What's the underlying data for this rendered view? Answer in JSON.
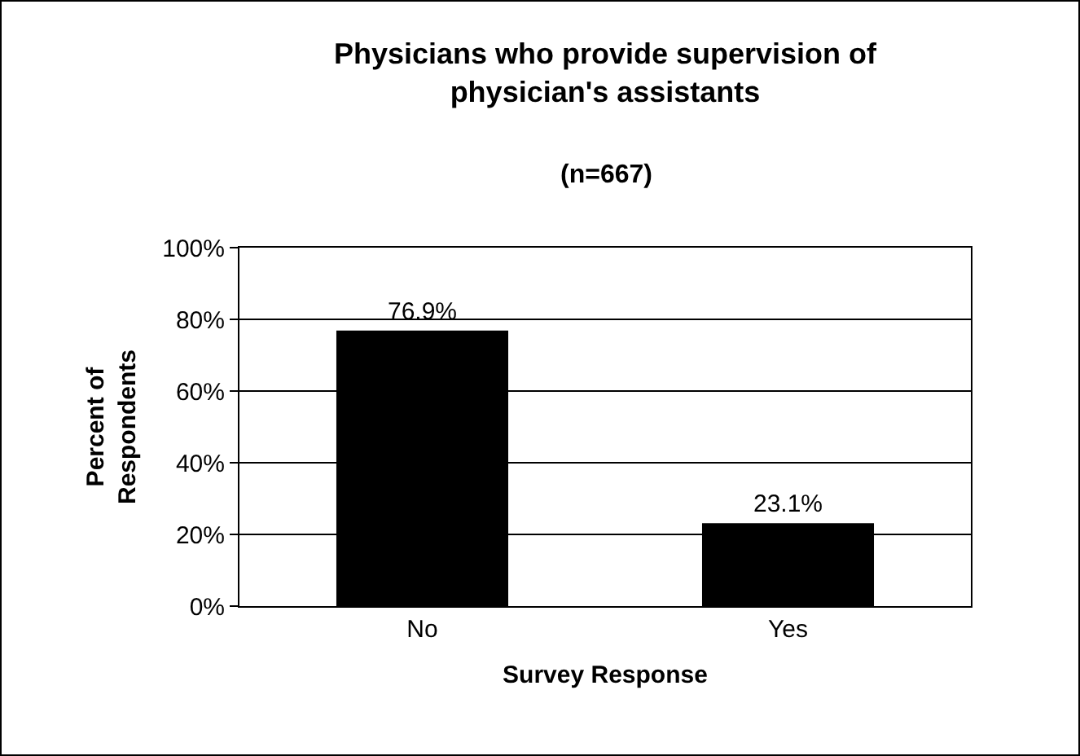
{
  "chart_data": {
    "type": "bar",
    "title": "Physicians who provide supervision of\nphysician's assistants",
    "subtitle": "(n=667)",
    "xlabel": "Survey Response",
    "ylabel": "Percent of\nRespondents",
    "categories": [
      "No",
      "Yes"
    ],
    "series": [
      {
        "color": "#000000",
        "values": [
          76.9,
          23.1
        ]
      }
    ],
    "value_labels": [
      "76.9%",
      "23.1%"
    ],
    "ylim": [
      0,
      100
    ],
    "yticks": [
      {
        "value": 0,
        "label": "0%"
      },
      {
        "value": 20,
        "label": "20%"
      },
      {
        "value": 40,
        "label": "40%"
      },
      {
        "value": 60,
        "label": "60%"
      },
      {
        "value": 80,
        "label": "80%"
      },
      {
        "value": 100,
        "label": "100%"
      }
    ],
    "grid": "y"
  }
}
